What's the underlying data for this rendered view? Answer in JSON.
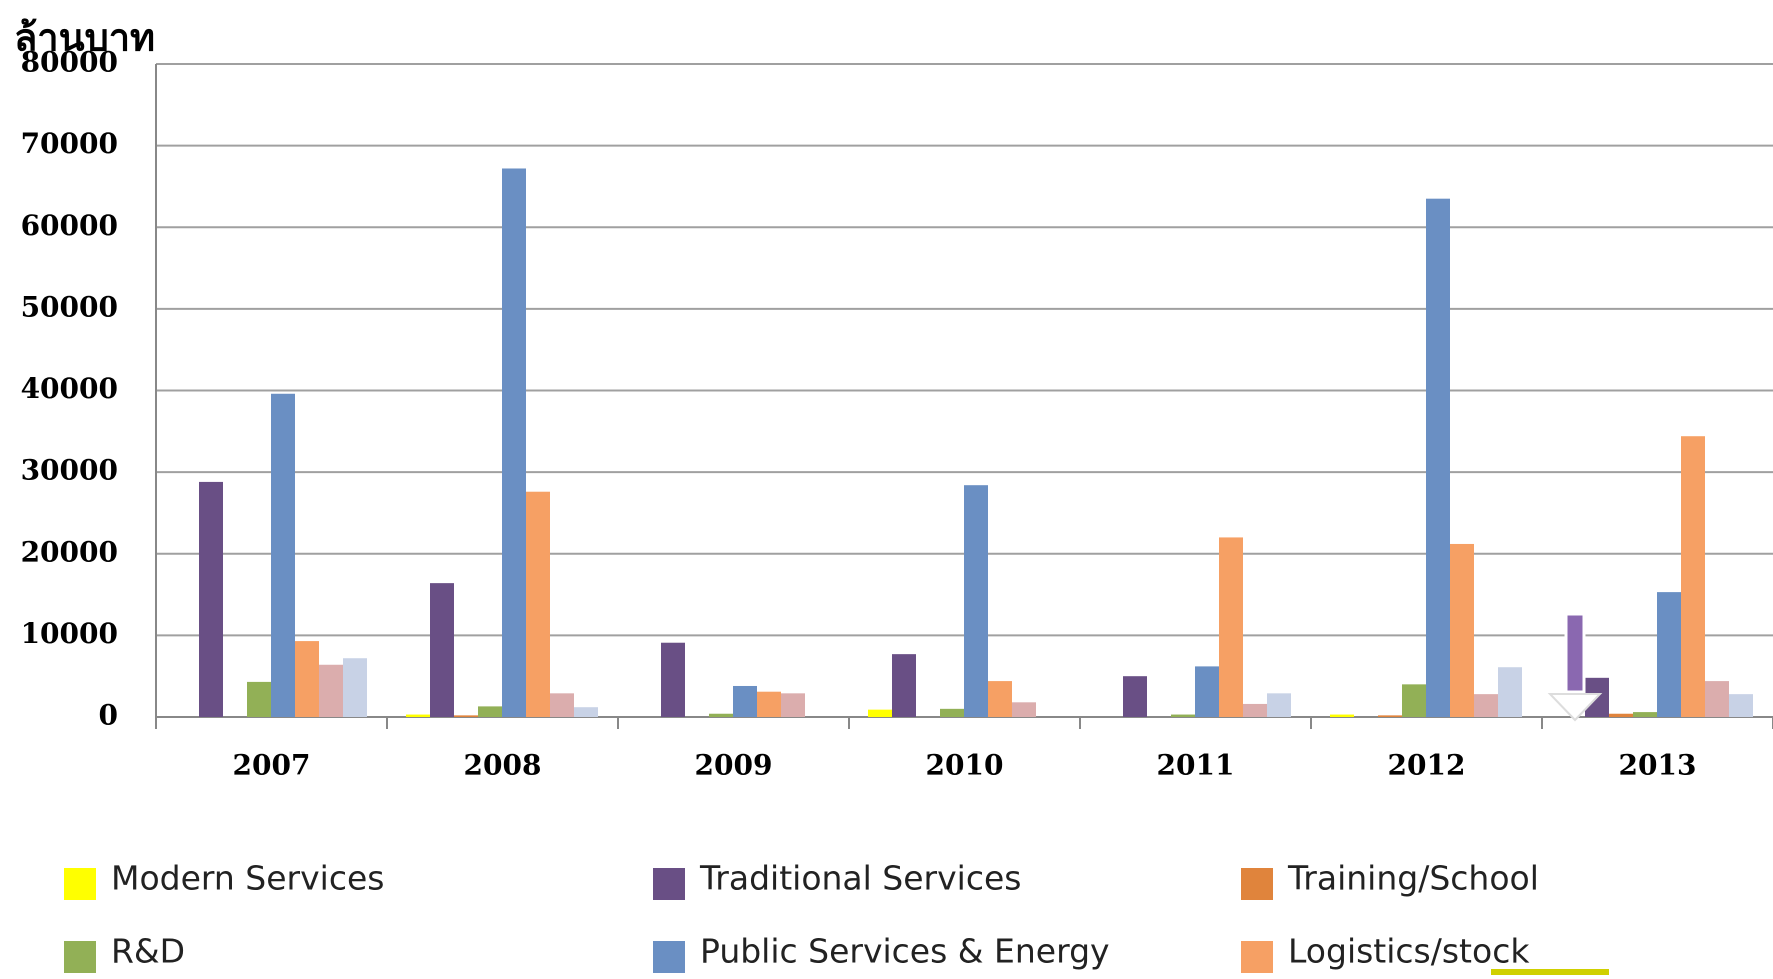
{
  "chart_data": {
    "type": "bar",
    "y_axis_title": "ล้านบาท",
    "categories": [
      "2007",
      "2008",
      "2009",
      "2010",
      "2011",
      "2012",
      "2013"
    ],
    "series": [
      {
        "name": "Modern Services",
        "color": "#ffff00",
        "values": [
          0,
          300,
          0,
          900,
          0,
          300,
          0
        ]
      },
      {
        "name": "Traditional Services",
        "color": "#694f85",
        "values": [
          28800,
          16400,
          9100,
          7700,
          5000,
          0,
          4800
        ]
      },
      {
        "name": "Training/School",
        "color": "#e0843c",
        "values": [
          0,
          200,
          0,
          0,
          0,
          200,
          400
        ]
      },
      {
        "name": "R&D",
        "color": "#92b056",
        "values": [
          4300,
          1300,
          400,
          1000,
          300,
          4000,
          600
        ]
      },
      {
        "name": "Public Services & Energy",
        "color": "#6a8fc3",
        "values": [
          39600,
          67200,
          3800,
          28400,
          6200,
          63500,
          15300
        ]
      },
      {
        "name": "Logistics/stock",
        "color": "#f6a064",
        "values": [
          9300,
          27600,
          3100,
          4400,
          22000,
          21200,
          34400
        ]
      },
      {
        "color": "#dbadad",
        "values": [
          6400,
          2900,
          2900,
          1800,
          1600,
          2800,
          4400
        ]
      },
      {
        "color": "#c8d2e6",
        "values": [
          7200,
          1200,
          0,
          0,
          2900,
          6100,
          2800
        ]
      }
    ],
    "ylim": [
      0,
      80000
    ],
    "yticks": [
      0,
      10000,
      20000,
      30000,
      40000,
      50000,
      60000,
      70000,
      80000
    ],
    "grid": true
  }
}
